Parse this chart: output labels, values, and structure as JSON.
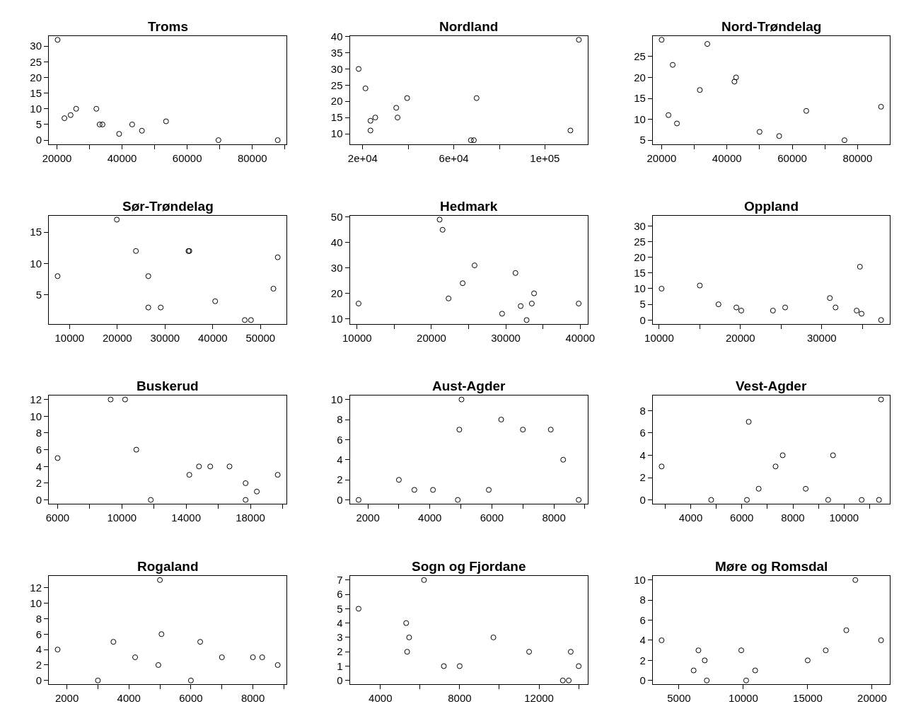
{
  "chart_data": [
    {
      "type": "scatter",
      "title": "Troms",
      "marker": "circle",
      "color": "#000000",
      "x": [
        20200,
        22300,
        24200,
        25900,
        32100,
        33100,
        34000,
        39100,
        43100,
        46100,
        53500,
        69600,
        87800
      ],
      "values": [
        32,
        7,
        8,
        10,
        10,
        5,
        5,
        2,
        5,
        3,
        6,
        0,
        0
      ],
      "xlim": [
        17500,
        90500
      ],
      "ylim": [
        -1.3,
        33.3
      ],
      "xticks": [
        20000,
        {
          "value": 30000,
          "label": null
        },
        40000,
        {
          "value": 50000,
          "label": null
        },
        60000,
        {
          "value": 70000,
          "label": null
        },
        80000,
        {
          "value": 90000,
          "label": null
        }
      ],
      "yticks": [
        0,
        5,
        10,
        15,
        20,
        25,
        30
      ]
    },
    {
      "type": "scatter",
      "title": "Nordland",
      "marker": "circle",
      "color": "#000000",
      "x": [
        18200,
        21200,
        23400,
        23400,
        25500,
        34700,
        35300,
        39500,
        67500,
        68800,
        70000,
        111200,
        114900
      ],
      "values": [
        30,
        24,
        11,
        14,
        15,
        18,
        15,
        21,
        8,
        8,
        21,
        11,
        39
      ],
      "xlim": [
        14300,
        118700
      ],
      "ylim": [
        6.76,
        40.24
      ],
      "xticks": [
        {
          "value": 20000,
          "label": "2e+04"
        },
        {
          "value": 40000,
          "label": null
        },
        {
          "value": 60000,
          "label": "6e+04"
        },
        {
          "value": 80000,
          "label": null
        },
        {
          "value": 100000,
          "label": "1e+05"
        }
      ],
      "yticks": [
        10,
        15,
        20,
        25,
        30,
        35,
        40
      ]
    },
    {
      "type": "scatter",
      "title": "Nord-Trøndelag",
      "marker": "circle",
      "color": "#000000",
      "x": [
        20000,
        22100,
        23400,
        24700,
        31700,
        34000,
        42300,
        42800,
        50000,
        56000,
        64300,
        76000,
        87200
      ],
      "values": [
        29,
        11,
        23,
        9,
        17,
        28,
        19,
        20,
        7,
        6,
        12,
        5,
        13
      ],
      "xlim": [
        17310,
        89890
      ],
      "ylim": [
        4.04,
        29.96
      ],
      "xticks": [
        20000,
        {
          "value": 30000,
          "label": null
        },
        40000,
        {
          "value": 50000,
          "label": null
        },
        60000,
        {
          "value": 70000,
          "label": null
        },
        80000
      ],
      "yticks": [
        5,
        10,
        15,
        20,
        25
      ]
    },
    {
      "type": "scatter",
      "title": "Sør-Trøndelag",
      "marker": "circle",
      "color": "#000000",
      "x": [
        7500,
        19900,
        23900,
        26500,
        26500,
        29100,
        34900,
        35100,
        40500,
        46700,
        48000,
        52700,
        53600
      ],
      "values": [
        8,
        17,
        12,
        8,
        3,
        3,
        12,
        12,
        4,
        1,
        1,
        6,
        11
      ],
      "xlim": [
        5656,
        55444
      ],
      "ylim": [
        0.36,
        17.64
      ],
      "xticks": [
        10000,
        20000,
        30000,
        40000,
        50000
      ],
      "yticks": [
        5,
        10,
        15
      ]
    },
    {
      "type": "scatter",
      "title": "Hedmark",
      "marker": "circle",
      "color": "#000000",
      "x": [
        10200,
        21100,
        21500,
        22300,
        24200,
        25800,
        29500,
        31300,
        32000,
        32800,
        33500,
        33800,
        39800
      ],
      "values": [
        16,
        49,
        45,
        18,
        24,
        31,
        12,
        28,
        15,
        9.5,
        16,
        20,
        16
      ],
      "xlim": [
        9016,
        40984
      ],
      "ylim": [
        7.92,
        50.58
      ],
      "xticks": [
        10000,
        {
          "value": 15000,
          "label": null
        },
        20000,
        {
          "value": 25000,
          "label": null
        },
        30000,
        {
          "value": 35000,
          "label": null
        },
        40000
      ],
      "yticks": [
        10,
        20,
        30,
        40,
        50
      ]
    },
    {
      "type": "scatter",
      "title": "Oppland",
      "marker": "circle",
      "color": "#000000",
      "x": [
        10300,
        15000,
        17300,
        19500,
        20100,
        24000,
        25500,
        31000,
        31700,
        34300,
        34700,
        34900,
        37300
      ],
      "values": [
        10,
        11,
        5,
        4,
        3,
        3,
        4,
        7,
        4,
        3,
        17,
        2,
        0
      ],
      "xlim": [
        9220,
        38380
      ],
      "ylim": [
        -1.3,
        33.3
      ],
      "xticks": [
        10000,
        {
          "value": 15000,
          "label": null
        },
        20000,
        {
          "value": 25000,
          "label": null
        },
        30000,
        {
          "value": 35000,
          "label": null
        }
      ],
      "yticks": [
        0,
        5,
        10,
        15,
        20,
        25,
        30
      ]
    },
    {
      "type": "scatter",
      "title": "Buskerud",
      "marker": "circle",
      "color": "#000000",
      "x": [
        6000,
        9300,
        10200,
        10900,
        11800,
        14200,
        14800,
        15500,
        16700,
        17700,
        17700,
        18400,
        19700
      ],
      "values": [
        5,
        12,
        12,
        6,
        0,
        3,
        4,
        4,
        4,
        2,
        0,
        1,
        3
      ],
      "xlim": [
        5452,
        20248
      ],
      "ylim": [
        -0.48,
        12.48
      ],
      "xticks": [
        6000,
        {
          "value": 8000,
          "label": null
        },
        10000,
        {
          "value": 12000,
          "label": null
        },
        14000,
        {
          "value": 16000,
          "label": null
        },
        18000,
        {
          "value": 20000,
          "label": null
        }
      ],
      "yticks": [
        0,
        2,
        4,
        6,
        8,
        10,
        12
      ]
    },
    {
      "type": "scatter",
      "title": "Aust-Agder",
      "marker": "circle",
      "color": "#000000",
      "x": [
        1700,
        3000,
        3500,
        4100,
        4900,
        4950,
        5020,
        5900,
        6300,
        7000,
        7900,
        8300,
        8800
      ],
      "values": [
        0,
        2,
        1,
        1,
        0,
        7,
        10,
        1,
        8,
        7,
        7,
        4,
        0
      ],
      "xlim": [
        1416,
        9084
      ],
      "ylim": [
        -0.4,
        10.4
      ],
      "xticks": [
        2000,
        {
          "value": 3000,
          "label": null
        },
        4000,
        {
          "value": 5000,
          "label": null
        },
        6000,
        {
          "value": 7000,
          "label": null
        },
        8000,
        {
          "value": 9000,
          "label": null
        }
      ],
      "yticks": [
        0,
        2,
        4,
        6,
        8,
        10
      ]
    },
    {
      "type": "scatter",
      "title": "Vest-Agder",
      "marker": "circle",
      "color": "#000000",
      "x": [
        2860,
        4800,
        6200,
        6270,
        6660,
        7320,
        7600,
        8500,
        9380,
        9570,
        10690,
        11370,
        11450
      ],
      "values": [
        3,
        0,
        0,
        7,
        1,
        3,
        4,
        1,
        0,
        4,
        0,
        0,
        9
      ],
      "xlim": [
        2516,
        11794
      ],
      "ylim": [
        -0.36,
        9.36
      ],
      "xticks": [
        {
          "value": 3000,
          "label": null
        },
        4000,
        {
          "value": 5000,
          "label": null
        },
        6000,
        {
          "value": 7000,
          "label": null
        },
        8000,
        {
          "value": 9000,
          "label": null
        },
        10000,
        {
          "value": 11000,
          "label": null
        }
      ],
      "yticks": [
        0,
        2,
        4,
        6,
        8
      ]
    },
    {
      "type": "scatter",
      "title": "Rogaland",
      "marker": "circle",
      "color": "#000000",
      "x": [
        1700,
        3000,
        3500,
        4200,
        4950,
        5000,
        5050,
        6000,
        6300,
        7000,
        8000,
        8300,
        8800
      ],
      "values": [
        4,
        0,
        5,
        3,
        2,
        13,
        6,
        0,
        5,
        3,
        3,
        3,
        2
      ],
      "xlim": [
        1416,
        9084
      ],
      "ylim": [
        -0.52,
        13.52
      ],
      "xticks": [
        2000,
        {
          "value": 3000,
          "label": null
        },
        4000,
        {
          "value": 5000,
          "label": null
        },
        6000,
        {
          "value": 7000,
          "label": null
        },
        8000,
        {
          "value": 9000,
          "label": null
        }
      ],
      "yticks": [
        0,
        2,
        4,
        6,
        8,
        10,
        12
      ]
    },
    {
      "type": "scatter",
      "title": "Sogn og Fjordane",
      "marker": "circle",
      "color": "#000000",
      "x": [
        2900,
        5300,
        5350,
        5450,
        6200,
        7200,
        8000,
        9700,
        11500,
        13200,
        13500,
        13600,
        14000
      ],
      "values": [
        5,
        4,
        2,
        3,
        7,
        1,
        1,
        3,
        2,
        0,
        0,
        2,
        1
      ],
      "xlim": [
        2456,
        14444
      ],
      "ylim": [
        -0.28,
        7.28
      ],
      "xticks": [
        4000,
        {
          "value": 6000,
          "label": null
        },
        8000,
        {
          "value": 10000,
          "label": null
        },
        12000,
        {
          "value": 14000,
          "label": null
        }
      ],
      "yticks": [
        0,
        1,
        2,
        3,
        4,
        5,
        6,
        7
      ]
    },
    {
      "type": "scatter",
      "title": "Møre og Romsdal",
      "marker": "circle",
      "color": "#000000",
      "x": [
        3650,
        6140,
        6510,
        7000,
        7160,
        9840,
        10220,
        10920,
        15000,
        16400,
        18000,
        18700,
        20700
      ],
      "values": [
        4,
        1,
        3,
        2,
        0,
        3,
        0,
        1,
        2,
        3,
        5,
        10,
        4
      ],
      "xlim": [
        2968,
        21382
      ],
      "ylim": [
        -0.4,
        10.4
      ],
      "xticks": [
        5000,
        10000,
        15000,
        20000
      ],
      "yticks": [
        0,
        2,
        4,
        6,
        8,
        10
      ]
    }
  ]
}
